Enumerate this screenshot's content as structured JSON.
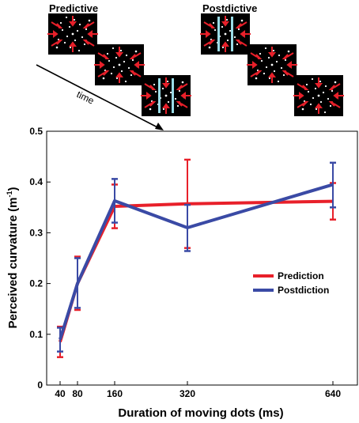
{
  "panels": {
    "predictive_label": "Predictive",
    "postdictive_label": "Postdictive",
    "time_label": "time"
  },
  "chart_data": {
    "type": "line",
    "x": [
      40,
      80,
      160,
      320,
      640
    ],
    "xlabel": "Duration of moving dots (ms)",
    "ylabel": "Perceived curvature (m",
    "ylabel_superscript": "-1",
    "ylabel_suffix": ")",
    "xticks": [
      "40",
      "80",
      "160",
      "320",
      "640"
    ],
    "yticks": [
      "0",
      "0.1",
      "0.2",
      "0.3",
      "0.4",
      "0.5"
    ],
    "ylim": [
      0,
      0.5
    ],
    "legend_position": "right-middle",
    "series": [
      {
        "name": "Prediction",
        "color": "#e8202a",
        "values": [
          0.085,
          0.2,
          0.352,
          0.357,
          0.362
        ],
        "err_upper": [
          0.115,
          0.253,
          0.395,
          0.444,
          0.398
        ],
        "err_lower": [
          0.055,
          0.148,
          0.309,
          0.27,
          0.326
        ]
      },
      {
        "name": "Postdiction",
        "color": "#3a4aa5",
        "values": [
          0.09,
          0.2,
          0.363,
          0.31,
          0.395
        ],
        "err_upper": [
          0.113,
          0.25,
          0.406,
          0.355,
          0.438
        ],
        "err_lower": [
          0.066,
          0.152,
          0.32,
          0.264,
          0.35
        ]
      }
    ]
  }
}
